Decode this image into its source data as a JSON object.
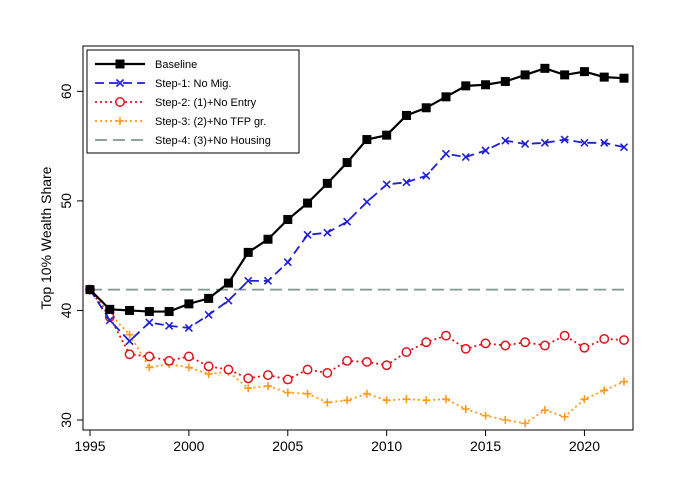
{
  "chart_data": {
    "type": "line",
    "ylabel": "Top 10% Wealth Share",
    "xlabel": "",
    "xlim": [
      1995,
      2022
    ],
    "ylim": [
      30,
      63.5
    ],
    "x_ticks": [
      1995,
      2000,
      2005,
      2010,
      2015,
      2020
    ],
    "y_ticks": [
      30,
      40,
      50,
      60
    ],
    "grid": false,
    "legend_position": "top-left",
    "x": [
      1995,
      1996,
      1997,
      1998,
      1999,
      2000,
      2001,
      2002,
      2003,
      2004,
      2005,
      2006,
      2007,
      2008,
      2009,
      2010,
      2011,
      2012,
      2013,
      2014,
      2015,
      2016,
      2017,
      2018,
      2019,
      2020,
      2021,
      2022
    ],
    "series": [
      {
        "name": "Baseline",
        "color": "#000000",
        "dash": "solid",
        "marker": "square",
        "values": [
          41.9,
          40.1,
          40.0,
          39.9,
          39.9,
          40.6,
          41.1,
          42.5,
          45.3,
          46.5,
          48.3,
          49.8,
          51.6,
          53.5,
          55.6,
          56.0,
          57.8,
          58.5,
          59.5,
          60.5,
          60.6,
          60.9,
          61.5,
          62.1,
          61.5,
          61.8,
          61.3,
          61.2
        ]
      },
      {
        "name": "Step-1: No Mig.",
        "color": "#1f1fd6",
        "dash": "dash",
        "marker": "x",
        "values": [
          41.9,
          39.1,
          37.2,
          38.9,
          38.6,
          38.4,
          39.6,
          40.9,
          42.7,
          42.7,
          44.4,
          46.9,
          47.1,
          48.1,
          49.9,
          51.5,
          51.7,
          52.3,
          54.3,
          54.0,
          54.6,
          55.5,
          55.2,
          55.3,
          55.6,
          55.3,
          55.3,
          54.9
        ]
      },
      {
        "name": "Step-2: (1)+No Entry",
        "color": "#e0141e",
        "dash": "dot",
        "marker": "circle",
        "values": [
          41.9,
          39.4,
          36.0,
          35.8,
          35.4,
          35.8,
          34.9,
          34.6,
          33.8,
          34.1,
          33.7,
          34.6,
          34.3,
          35.4,
          35.3,
          35.0,
          36.2,
          37.1,
          37.7,
          36.5,
          37.0,
          36.8,
          37.1,
          36.8,
          37.7,
          36.6,
          37.4,
          37.3
        ]
      },
      {
        "name": "Step-3: (2)+No TFP gr.",
        "color": "#ff9a1a",
        "dash": "dot",
        "marker": "plus",
        "values": [
          41.9,
          39.7,
          37.8,
          34.8,
          35.1,
          34.8,
          34.2,
          34.4,
          32.9,
          33.1,
          32.5,
          32.4,
          31.6,
          31.8,
          32.4,
          31.8,
          31.9,
          31.8,
          31.9,
          31.0,
          30.4,
          30.0,
          29.7,
          30.9,
          30.3,
          31.9,
          32.7,
          33.5
        ]
      },
      {
        "name": "Step-4: (3)+No Housing",
        "color": "#7f9a8c",
        "dash": "longdash",
        "marker": "none",
        "values": [
          41.9,
          41.9,
          41.9,
          41.9,
          41.9,
          41.9,
          41.9,
          41.9,
          41.9,
          41.9,
          41.9,
          41.9,
          41.9,
          41.9,
          41.9,
          41.9,
          41.9,
          41.9,
          41.9,
          41.9,
          41.9,
          41.9,
          41.9,
          41.9,
          41.9,
          41.9,
          41.9,
          41.9
        ]
      }
    ]
  }
}
